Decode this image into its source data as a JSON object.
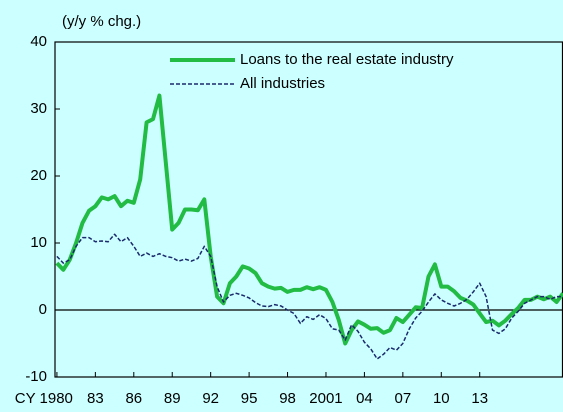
{
  "chart_data": {
    "type": "line",
    "y_unit_label": "(y/y % chg.)",
    "x": [
      1980,
      1980.5,
      1981,
      1981.5,
      1982,
      1982.5,
      1983,
      1983.5,
      1984,
      1984.5,
      1985,
      1985.5,
      1986,
      1986.5,
      1987,
      1987.5,
      1988,
      1988.5,
      1989,
      1989.5,
      1990,
      1990.5,
      1991,
      1991.5,
      1992,
      1992.5,
      1993,
      1993.5,
      1994,
      1994.5,
      1995,
      1995.5,
      1996,
      1996.5,
      1997,
      1997.5,
      1998,
      1998.5,
      1999,
      1999.5,
      2000,
      2000.5,
      2001,
      2001.5,
      2002,
      2002.5,
      2003,
      2003.5,
      2004,
      2004.5,
      2005,
      2005.5,
      2006,
      2006.5,
      2007,
      2007.5,
      2008,
      2008.5,
      2009,
      2009.5,
      2010,
      2010.5,
      2011,
      2011.5,
      2012,
      2012.5,
      2013,
      2013.5,
      2014,
      2014.5,
      2015,
      2015.5,
      2016,
      2016.5,
      2017,
      2017.5,
      2018,
      2018.5,
      2019,
      2019.5
    ],
    "series": [
      {
        "name": "Loans to the real estate industry",
        "color": "#22bb44",
        "style": "solid",
        "values": [
          7,
          6,
          7.5,
          10,
          13,
          14.8,
          15.5,
          16.8,
          16.5,
          17,
          15.5,
          16.3,
          16,
          19.5,
          28,
          28.5,
          32,
          22,
          12,
          13,
          15,
          15,
          14.9,
          16.5,
          8,
          2,
          1,
          4,
          5,
          6.5,
          6.2,
          5.5,
          4,
          3.5,
          3.2,
          3.3,
          2.7,
          3,
          3,
          3.4,
          3.1,
          3.4,
          3,
          1.2,
          -1.5,
          -5,
          -3,
          -1.7,
          -2.2,
          -2.8,
          -2.7,
          -3.4,
          -3,
          -1.2,
          -1.8,
          -0.7,
          0.4,
          0.3,
          5,
          6.8,
          3.5,
          3.5,
          2.8,
          1.8,
          1.4,
          0.8,
          -0.5,
          -1.8,
          -1.6,
          -2.3,
          -1.6,
          -0.6,
          0.3,
          1.5,
          1.5,
          2,
          1.6,
          2,
          1.2,
          2.5
        ]
      },
      {
        "name": "All industries",
        "color": "#1a2a6c",
        "style": "dashed",
        "values": [
          8,
          7,
          7.5,
          9.5,
          10.8,
          10.8,
          10.2,
          10.3,
          10.2,
          11.3,
          10.2,
          10.8,
          9.5,
          8,
          8.5,
          8,
          8.4,
          8,
          7.8,
          7.3,
          7.6,
          7.3,
          7.7,
          9.5,
          8,
          3.5,
          1.2,
          2.2,
          2.5,
          2.2,
          1.8,
          1.1,
          0.6,
          0.5,
          0.8,
          0.6,
          0,
          -0.5,
          -2,
          -1,
          -1.4,
          -0.7,
          -1.3,
          -2.8,
          -3,
          -4.5,
          -2.2,
          -3.2,
          -4.8,
          -5.8,
          -7.3,
          -6.6,
          -5.6,
          -6,
          -5,
          -2.8,
          -1.2,
          -0.2,
          1.2,
          2.4,
          1.5,
          1,
          0.6,
          1,
          1.6,
          2.7,
          4,
          2,
          -3,
          -3.5,
          -2.8,
          -1.2,
          -0.2,
          1,
          1.5,
          2,
          2,
          1.6,
          2,
          2
        ]
      }
    ],
    "xlim": [
      1979.85,
      2019.5
    ],
    "xticks": [
      {
        "value": 1980,
        "label": "CY 1980"
      },
      {
        "value": 1983,
        "label": "83"
      },
      {
        "value": 1986,
        "label": "86"
      },
      {
        "value": 1989,
        "label": "89"
      },
      {
        "value": 1992,
        "label": "92"
      },
      {
        "value": 1995,
        "label": "95"
      },
      {
        "value": 1998,
        "label": "98"
      },
      2001,
      {
        "value": 2004,
        "label": "04"
      },
      {
        "value": 2007,
        "label": "07"
      },
      {
        "value": 2010,
        "label": "10"
      },
      {
        "value": 2013,
        "label": "13"
      }
    ],
    "ylim": [
      -10,
      40
    ],
    "yticks": [
      -10,
      0,
      10,
      20,
      30,
      40
    ],
    "legend": "upper right"
  }
}
